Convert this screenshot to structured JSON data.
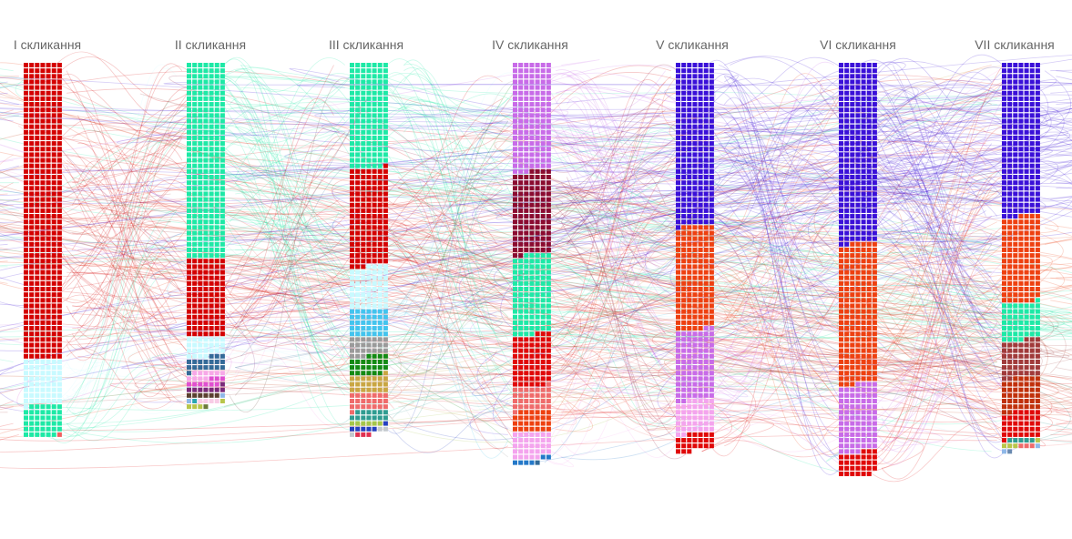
{
  "chart_data": {
    "type": "waffle-flow",
    "columns": [
      {
        "label": "I скликання",
        "groups": [
          {
            "color": "#d40000",
            "count": 371
          },
          {
            "color": "#c8faff",
            "count": 57
          },
          {
            "color": "#1de9a6",
            "count": 40
          },
          {
            "color": "#f06060",
            "count": 1
          }
        ]
      },
      {
        "label": "II скликання",
        "groups": [
          {
            "color": "#1de9a6",
            "count": 245
          },
          {
            "color": "#d40000",
            "count": 98
          },
          {
            "color": "#c8faff",
            "count": 25
          },
          {
            "color": "#346a98",
            "count": 18
          },
          {
            "color": "#f7a8e8",
            "count": 10
          },
          {
            "color": "#e050d0",
            "count": 9
          },
          {
            "color": "#7b2a7a",
            "count": 8
          },
          {
            "color": "#5a4030",
            "count": 6
          },
          {
            "color": "#8fb8e8",
            "count": 2
          },
          {
            "color": "#2aa6b0",
            "count": 1
          },
          {
            "color": "#f8cce6",
            "count": 4
          },
          {
            "color": "#b8c64a",
            "count": 4
          },
          {
            "color": "#6b7a3a",
            "count": 1
          }
        ]
      },
      {
        "label": "III скликання",
        "groups": [
          {
            "color": "#1de9a6",
            "count": 132
          },
          {
            "color": "#d40000",
            "count": 123
          },
          {
            "color": "#c8faff",
            "count": 53
          },
          {
            "color": "#43c4ee",
            "count": 35
          },
          {
            "color": "#9a9a9a",
            "count": 24
          },
          {
            "color": "#138a13",
            "count": 24
          },
          {
            "color": "#c9a642",
            "count": 22
          },
          {
            "color": "#ef6b6b",
            "count": 22
          },
          {
            "color": "#2f9c91",
            "count": 13
          },
          {
            "color": "#a5c64a",
            "count": 6
          },
          {
            "color": "#2540c0",
            "count": 6
          },
          {
            "color": "#c4c9ce",
            "count": 3
          },
          {
            "color": "#e03050",
            "count": 3
          }
        ]
      },
      {
        "label": "IV скликання",
        "groups": [
          {
            "color": "#c86be8",
            "count": 136
          },
          {
            "color": "#8a0b30",
            "count": 104
          },
          {
            "color": "#1de9a6",
            "count": 100
          },
          {
            "color": "#e00808",
            "count": 65
          },
          {
            "color": "#ef6b6b",
            "count": 30
          },
          {
            "color": "#ee4010",
            "count": 27
          },
          {
            "color": "#f4a4ee",
            "count": 33
          },
          {
            "color": "#2478c8",
            "count": 6
          },
          {
            "color": "#346a98",
            "count": 1
          }
        ]
      },
      {
        "label": "V скликання",
        "groups": [
          {
            "color": "#3a10d8",
            "count": 204
          },
          {
            "color": "#ee4010",
            "count": 130
          },
          {
            "color": "#c86be8",
            "count": 88
          },
          {
            "color": "#f4a4ee",
            "count": 42
          },
          {
            "color": "#e00808",
            "count": 22
          }
        ]
      },
      {
        "label": "VI скликання",
        "groups": [
          {
            "color": "#3a10d8",
            "count": 226
          },
          {
            "color": "#ee4010",
            "count": 176
          },
          {
            "color": "#c86be8",
            "count": 85
          },
          {
            "color": "#e00808",
            "count": 30
          }
        ]
      },
      {
        "label": "VII скликання",
        "groups": [
          {
            "color": "#3a10d8",
            "count": 192
          },
          {
            "color": "#ee4010",
            "count": 108
          },
          {
            "color": "#1de9a6",
            "count": 47
          },
          {
            "color": "#a03a3a",
            "count": 47
          },
          {
            "color": "#c0300a",
            "count": 42
          },
          {
            "color": "#e00808",
            "count": 34
          },
          {
            "color": "#2f9c91",
            "count": 5
          },
          {
            "color": "#b8c64a",
            "count": 4
          },
          {
            "color": "#ef6b6b",
            "count": 3
          },
          {
            "color": "#8fb8e8",
            "count": 2
          },
          {
            "color": "#6a8ab0",
            "count": 1
          }
        ]
      }
    ]
  }
}
